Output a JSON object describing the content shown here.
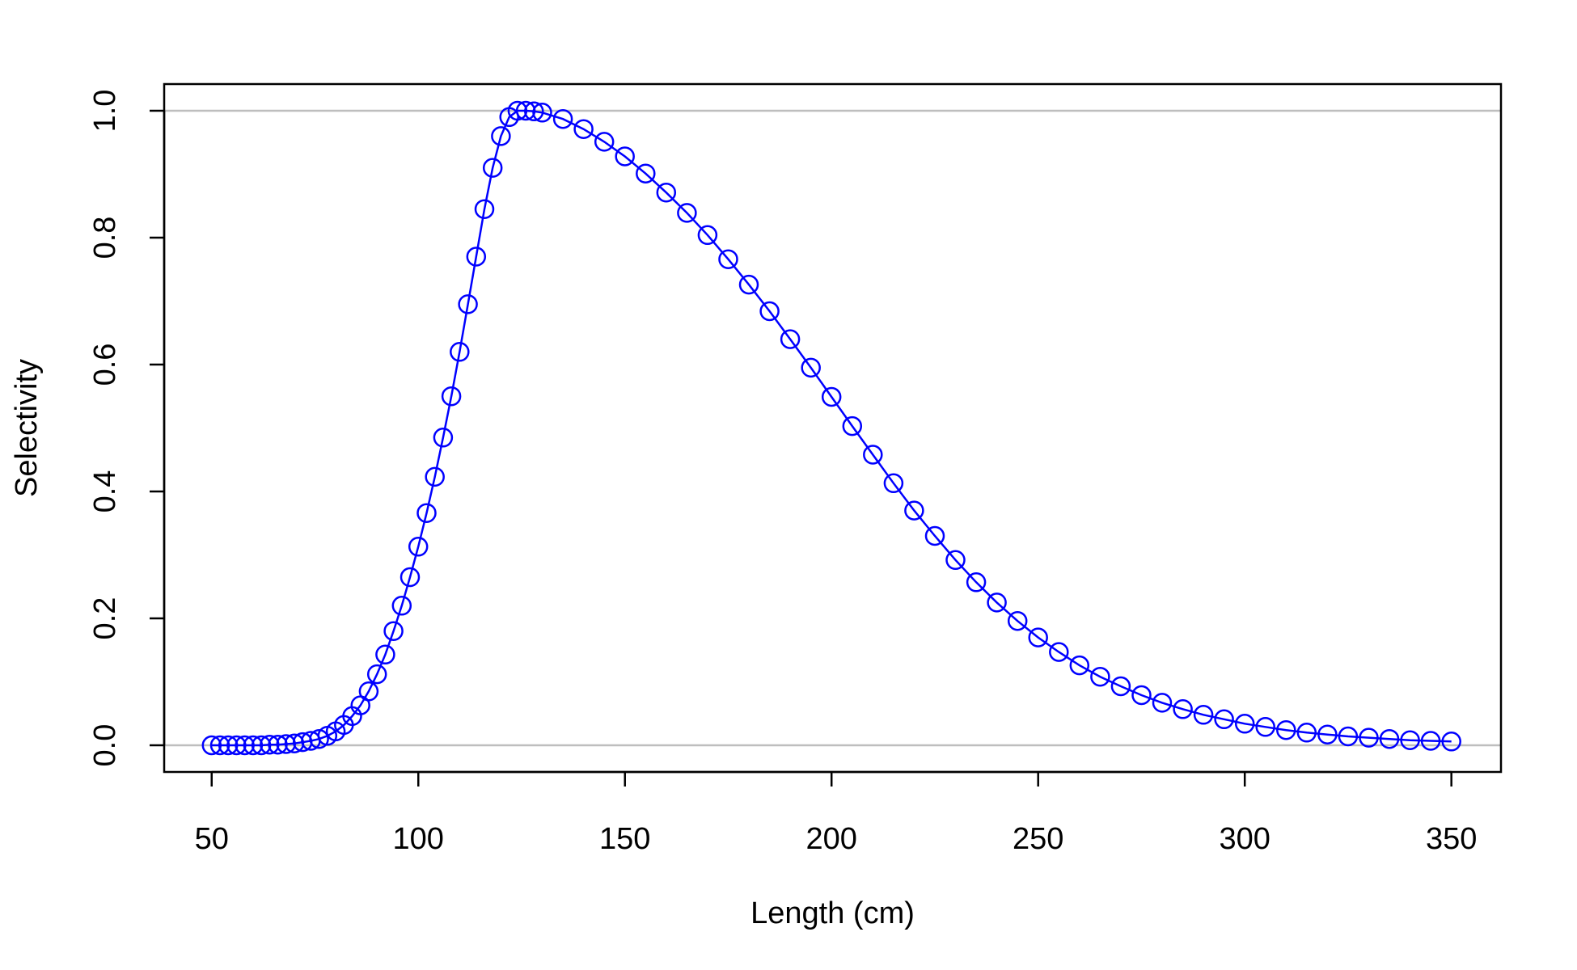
{
  "chart_data": {
    "type": "scatter",
    "title": "",
    "xlabel": "Length (cm)",
    "ylabel": "Selectivity",
    "xlim": [
      38.5,
      362
    ],
    "ylim": [
      -0.042,
      1.042
    ],
    "x_ticks": [
      50,
      100,
      150,
      200,
      250,
      300,
      350
    ],
    "y_ticks": [
      0.0,
      0.2,
      0.4,
      0.6,
      0.8,
      1.0
    ],
    "x_tick_labels": [
      "50",
      "100",
      "150",
      "200",
      "250",
      "300",
      "350"
    ],
    "y_tick_labels": [
      "0.0",
      "0.2",
      "0.4",
      "0.6",
      "0.8",
      "1.0"
    ],
    "reference_lines_y": [
      0.0,
      1.0
    ],
    "reference_line_color": "#bebebe",
    "series_color": "#0000ff",
    "marker": "open-circle",
    "connected": true,
    "grid": false,
    "legend": "none",
    "series": [
      {
        "x": [
          50,
          52,
          54,
          56,
          58,
          60,
          62,
          64,
          66,
          68,
          70,
          72,
          74,
          76,
          78,
          80,
          82,
          84,
          86,
          88,
          90,
          92,
          94,
          96,
          98,
          100,
          102,
          104,
          106,
          108,
          110,
          112,
          114,
          116,
          118,
          120,
          122,
          124,
          126,
          128,
          130,
          135,
          140,
          145,
          150,
          155,
          160,
          165,
          170,
          175,
          180,
          185,
          190,
          195,
          200,
          205,
          210,
          215,
          220,
          225,
          230,
          235,
          240,
          245,
          250,
          255,
          260,
          265,
          270,
          275,
          280,
          285,
          290,
          295,
          300,
          305,
          310,
          315,
          320,
          325,
          330,
          335,
          340,
          345,
          350
        ],
        "values": [
          0.0,
          0.0,
          0.0,
          0.0,
          0.0,
          0.0,
          0.0,
          0.001,
          0.001,
          0.002,
          0.003,
          0.005,
          0.007,
          0.01,
          0.015,
          0.022,
          0.032,
          0.046,
          0.063,
          0.085,
          0.112,
          0.143,
          0.18,
          0.22,
          0.265,
          0.313,
          0.366,
          0.423,
          0.485,
          0.55,
          0.62,
          0.695,
          0.77,
          0.845,
          0.91,
          0.96,
          0.99,
          1.0,
          1.0,
          0.999,
          0.997,
          0.987,
          0.971,
          0.951,
          0.928,
          0.901,
          0.871,
          0.839,
          0.804,
          0.766,
          0.726,
          0.684,
          0.64,
          0.595,
          0.549,
          0.503,
          0.458,
          0.413,
          0.37,
          0.33,
          0.292,
          0.257,
          0.225,
          0.196,
          0.17,
          0.147,
          0.126,
          0.108,
          0.093,
          0.079,
          0.067,
          0.057,
          0.048,
          0.041,
          0.034,
          0.029,
          0.024,
          0.02,
          0.017,
          0.014,
          0.012,
          0.01,
          0.008,
          0.007,
          0.006
        ]
      }
    ]
  }
}
